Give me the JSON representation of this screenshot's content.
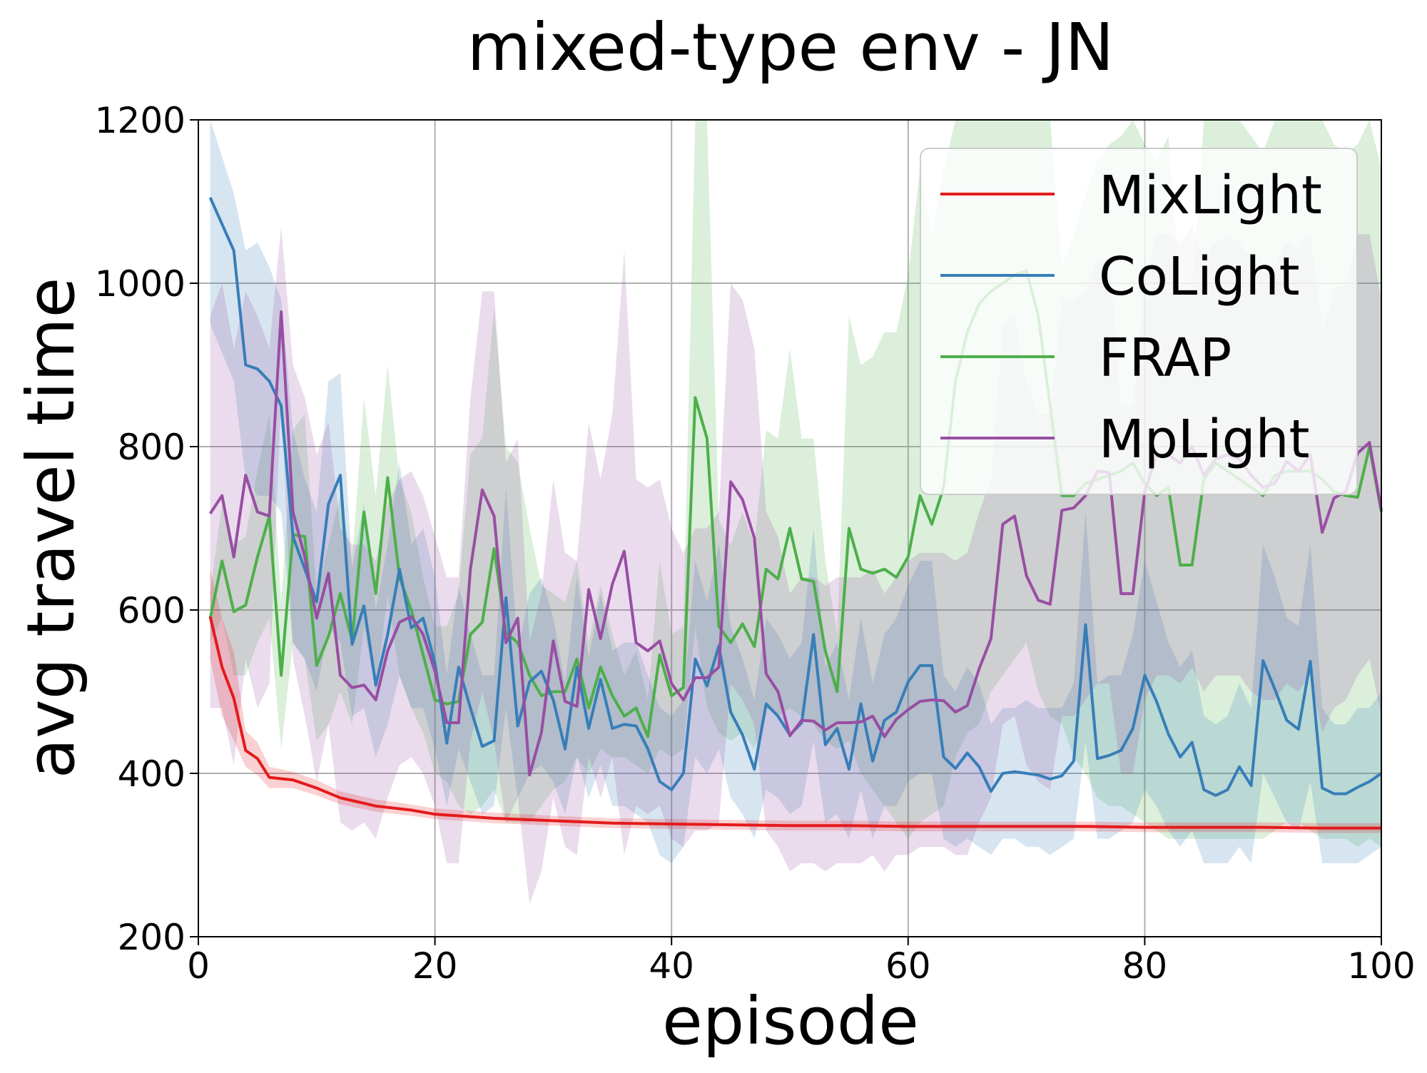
{
  "chart_data": {
    "type": "line",
    "title": "mixed-type env - JN",
    "xlabel": "episode",
    "ylabel": "avg travel time",
    "xlim": [
      0,
      100
    ],
    "ylim": [
      200,
      1200
    ],
    "xticks": [
      0,
      20,
      40,
      60,
      80,
      100
    ],
    "yticks": [
      200,
      400,
      600,
      800,
      1000,
      1200
    ],
    "grid": true,
    "legend_position": "top-right",
    "series": [
      {
        "name": "MixLight",
        "color": "#e41a1c",
        "x": [
          1,
          2,
          3,
          4,
          5,
          6,
          8,
          10,
          12,
          15,
          18,
          20,
          25,
          30,
          35,
          40,
          45,
          50,
          55,
          60,
          65,
          70,
          75,
          80,
          85,
          90,
          95,
          100
        ],
        "mean": [
          592,
          530,
          492,
          428,
          418,
          395,
          392,
          382,
          370,
          360,
          355,
          350,
          345,
          342,
          339,
          338,
          337,
          336,
          336,
          335,
          335,
          335,
          335,
          334,
          334,
          334,
          333,
          333
        ],
        "lower": [
          540,
          470,
          440,
          408,
          398,
          382,
          382,
          373,
          362,
          353,
          348,
          344,
          339,
          336,
          333,
          332,
          331,
          330,
          330,
          329,
          329,
          329,
          329,
          328,
          328,
          328,
          327,
          327
        ],
        "upper": [
          650,
          590,
          548,
          452,
          438,
          408,
          402,
          392,
          378,
          368,
          362,
          357,
          352,
          348,
          345,
          344,
          343,
          342,
          342,
          341,
          341,
          341,
          341,
          340,
          340,
          340,
          339,
          339
        ]
      },
      {
        "name": "CoLight",
        "color": "#377eb8",
        "x": [
          1,
          3,
          4,
          5,
          6,
          7,
          8,
          9,
          10,
          11,
          12,
          13,
          14,
          15,
          16,
          17,
          18,
          19,
          20,
          21,
          22,
          23,
          24,
          25,
          26,
          27,
          28,
          29,
          30,
          31,
          32,
          33,
          34,
          35,
          36,
          37,
          38,
          39,
          40,
          41,
          42,
          43,
          44,
          45,
          46,
          47,
          48,
          49,
          50,
          51,
          52,
          53,
          54,
          55,
          56,
          57,
          58,
          59,
          60,
          61,
          62,
          63,
          64,
          65,
          66,
          67,
          68,
          69,
          70,
          71,
          72,
          73,
          74,
          75,
          76,
          77,
          78,
          79,
          80,
          81,
          82,
          83,
          84,
          85,
          86,
          87,
          88,
          89,
          90,
          91,
          92,
          93,
          94,
          95,
          96,
          97,
          98,
          99,
          100
        ],
        "mean": [
          1105,
          1040,
          900,
          895,
          880,
          850,
          690,
          650,
          610,
          730,
          765,
          558,
          605,
          508,
          570,
          650,
          578,
          590,
          535,
          437,
          530,
          480,
          433,
          440,
          615,
          458,
          512,
          525,
          490,
          430,
          530,
          455,
          515,
          455,
          460,
          458,
          430,
          390,
          380,
          400,
          540,
          507,
          556,
          475,
          447,
          405,
          485,
          470,
          447,
          462,
          570,
          435,
          455,
          405,
          485,
          415,
          465,
          475,
          512,
          532,
          532,
          420,
          406,
          425,
          408,
          378,
          400,
          402,
          400,
          398,
          393,
          397,
          415,
          582,
          418,
          422,
          428,
          455,
          520,
          488,
          448,
          420,
          438,
          380,
          373,
          380,
          408,
          385,
          538,
          503,
          465,
          454,
          537,
          382,
          375,
          375,
          383,
          390,
          400
        ],
        "lower": [
          950,
          880,
          760,
          740,
          740,
          720,
          560,
          540,
          500,
          580,
          560,
          470,
          480,
          420,
          460,
          520,
          480,
          480,
          430,
          360,
          430,
          390,
          350,
          360,
          480,
          370,
          400,
          410,
          390,
          350,
          420,
          370,
          410,
          360,
          360,
          350,
          340,
          300,
          290,
          310,
          420,
          400,
          430,
          370,
          350,
          320,
          380,
          370,
          350,
          360,
          440,
          340,
          350,
          320,
          380,
          320,
          360,
          360,
          390,
          400,
          400,
          320,
          310,
          320,
          310,
          300,
          320,
          320,
          310,
          310,
          300,
          310,
          320,
          440,
          320,
          320,
          330,
          340,
          380,
          360,
          330,
          310,
          330,
          290,
          290,
          290,
          310,
          290,
          400,
          370,
          340,
          330,
          390,
          290,
          290,
          290,
          290,
          300,
          310
        ],
        "upper": [
          1260,
          1110,
          1040,
          1050,
          1020,
          980,
          820,
          760,
          720,
          880,
          890,
          650,
          730,
          600,
          680,
          780,
          680,
          700,
          640,
          520,
          630,
          570,
          520,
          520,
          750,
          550,
          620,
          640,
          590,
          510,
          640,
          540,
          620,
          550,
          560,
          560,
          520,
          480,
          470,
          490,
          660,
          610,
          680,
          580,
          540,
          490,
          590,
          570,
          540,
          560,
          700,
          530,
          560,
          490,
          590,
          510,
          570,
          590,
          630,
          660,
          660,
          520,
          500,
          530,
          510,
          460,
          480,
          480,
          490,
          480,
          480,
          480,
          510,
          720,
          510,
          520,
          520,
          570,
          660,
          610,
          560,
          530,
          550,
          470,
          460,
          470,
          510,
          480,
          680,
          640,
          590,
          580,
          680,
          480,
          460,
          460,
          480,
          480,
          500
        ]
      },
      {
        "name": "FRAP",
        "color": "#4daf4a",
        "x": [
          1,
          2,
          3,
          4,
          5,
          6,
          7,
          8,
          9,
          10,
          11,
          12,
          13,
          14,
          15,
          16,
          17,
          18,
          19,
          20,
          21,
          22,
          23,
          24,
          25,
          26,
          27,
          28,
          29,
          30,
          31,
          32,
          33,
          34,
          35,
          36,
          37,
          38,
          39,
          40,
          41,
          42,
          43,
          44,
          45,
          46,
          47,
          48,
          49,
          50,
          51,
          52,
          53,
          54,
          55,
          56,
          57,
          58,
          59,
          60,
          61,
          62,
          63,
          64,
          65,
          66,
          67,
          68,
          69,
          70,
          71,
          72,
          73,
          74,
          75,
          76,
          77,
          78,
          79,
          80,
          81,
          82,
          83,
          84,
          85,
          86,
          87,
          88,
          89,
          90,
          91,
          92,
          93,
          94,
          95,
          96,
          97,
          98,
          99,
          100
        ],
        "mean": [
          590,
          660,
          598,
          606,
          665,
          715,
          520,
          692,
          690,
          532,
          568,
          620,
          562,
          720,
          620,
          762,
          640,
          600,
          545,
          490,
          485,
          488,
          570,
          585,
          675,
          572,
          560,
          520,
          495,
          500,
          500,
          540,
          480,
          530,
          495,
          470,
          480,
          445,
          545,
          495,
          505,
          860,
          810,
          580,
          560,
          583,
          555,
          650,
          638,
          700,
          638,
          635,
          550,
          500,
          700,
          650,
          645,
          650,
          640,
          665,
          740,
          705,
          750,
          880,
          940,
          975,
          990,
          1000,
          1010,
          1015,
          960,
          850,
          740,
          740,
          755,
          760,
          765,
          770,
          780,
          755,
          740,
          750,
          655,
          655,
          760,
          780,
          770,
          760,
          750,
          740,
          765,
          770,
          770,
          770,
          760,
          745,
          740,
          738,
          800,
          720
        ],
        "lower": [
          560,
          590,
          520,
          520,
          560,
          590,
          430,
          560,
          540,
          440,
          460,
          500,
          460,
          580,
          500,
          620,
          520,
          480,
          450,
          400,
          390,
          360,
          350,
          360,
          380,
          340,
          340,
          340,
          360,
          380,
          390,
          420,
          400,
          430,
          420,
          420,
          410,
          400,
          430,
          420,
          430,
          580,
          480,
          450,
          440,
          450,
          430,
          480,
          470,
          480,
          470,
          460,
          440,
          430,
          440,
          400,
          380,
          360,
          340,
          320,
          340,
          350,
          360,
          420,
          450,
          460,
          500,
          520,
          540,
          560,
          500,
          470,
          460,
          420,
          400,
          370,
          360,
          360,
          350,
          340,
          330,
          320,
          320,
          320,
          320,
          320,
          320,
          320,
          320,
          320,
          330,
          340,
          340,
          330,
          320,
          320,
          320,
          310,
          320,
          310
        ],
        "upper": [
          620,
          730,
          680,
          690,
          770,
          840,
          610,
          820,
          840,
          620,
          680,
          740,
          660,
          860,
          740,
          900,
          760,
          720,
          640,
          580,
          580,
          620,
          790,
          810,
          970,
          800,
          780,
          700,
          630,
          620,
          610,
          660,
          560,
          630,
          570,
          520,
          550,
          490,
          660,
          570,
          580,
          1200,
          1200,
          710,
          680,
          720,
          680,
          820,
          810,
          920,
          810,
          810,
          660,
          570,
          960,
          900,
          910,
          940,
          940,
          1010,
          1140,
          1060,
          1140,
          1200,
          1200,
          1200,
          1200,
          1200,
          1200,
          1200,
          1200,
          1200,
          1020,
          1060,
          1110,
          1150,
          1170,
          1180,
          1200,
          1170,
          1150,
          1180,
          990,
          990,
          1200,
          1200,
          1200,
          1200,
          1180,
          1160,
          1200,
          1200,
          1200,
          1200,
          1200,
          1170,
          1160,
          1170,
          1200,
          1140
        ]
      },
      {
        "name": "MpLight",
        "color": "#984ea3",
        "x": [
          1,
          2,
          3,
          4,
          5,
          6,
          7,
          8,
          9,
          10,
          11,
          12,
          13,
          14,
          15,
          16,
          17,
          18,
          19,
          20,
          21,
          22,
          23,
          24,
          25,
          26,
          27,
          28,
          29,
          30,
          31,
          32,
          33,
          34,
          35,
          36,
          37,
          38,
          39,
          40,
          41,
          42,
          43,
          44,
          45,
          46,
          47,
          48,
          49,
          50,
          51,
          52,
          53,
          54,
          55,
          56,
          57,
          58,
          59,
          60,
          61,
          62,
          63,
          64,
          65,
          66,
          67,
          68,
          69,
          70,
          71,
          72,
          73,
          74,
          75,
          76,
          77,
          78,
          79,
          80,
          81,
          82,
          83,
          84,
          85,
          86,
          87,
          88,
          89,
          90,
          91,
          92,
          93,
          94,
          95,
          96,
          97,
          98,
          99,
          100
        ],
        "mean": [
          718,
          740,
          665,
          765,
          720,
          715,
          965,
          720,
          665,
          590,
          645,
          520,
          505,
          508,
          490,
          550,
          585,
          592,
          570,
          525,
          462,
          462,
          650,
          747,
          715,
          560,
          590,
          398,
          450,
          562,
          488,
          482,
          625,
          565,
          632,
          672,
          560,
          550,
          562,
          510,
          490,
          517,
          517,
          530,
          757,
          735,
          688,
          522,
          500,
          446,
          465,
          464,
          453,
          462,
          462,
          463,
          470,
          445,
          466,
          478,
          488,
          490,
          489,
          475,
          483,
          528,
          565,
          705,
          715,
          642,
          612,
          607,
          722,
          725,
          740,
          770,
          768,
          620,
          620,
          745,
          790,
          790,
          780,
          800,
          765,
          785,
          790,
          785,
          765,
          750,
          755,
          782,
          770,
          790,
          695,
          737,
          745,
          792,
          805,
          722
        ]
      }
    ]
  },
  "mplight_band": {
    "upper": [
      960,
      1000,
      920,
      990,
      960,
      920,
      1070,
      900,
      860,
      790,
      830,
      700,
      680,
      680,
      660,
      730,
      760,
      770,
      740,
      690,
      640,
      640,
      860,
      990,
      990,
      780,
      810,
      560,
      620,
      760,
      670,
      660,
      830,
      760,
      840,
      1040,
      760,
      750,
      760,
      700,
      670,
      700,
      700,
      720,
      1000,
      980,
      920,
      720,
      690,
      620,
      640,
      640,
      630,
      640,
      640,
      640,
      650,
      620,
      640,
      660,
      670,
      670,
      670,
      660,
      670,
      720,
      760,
      950,
      960,
      880,
      840,
      840,
      980,
      980,
      990,
      1030,
      1030,
      850,
      850,
      1000,
      1060,
      1060,
      1050,
      1070,
      1030,
      1050,
      1060,
      1050,
      1030,
      1010,
      1020,
      1050,
      1040,
      1060,
      940,
      990,
      1000,
      1060,
      1060,
      980
    ],
    "lower": [
      480,
      480,
      410,
      540,
      480,
      510,
      860,
      540,
      470,
      390,
      460,
      340,
      330,
      340,
      320,
      370,
      410,
      420,
      400,
      360,
      290,
      290,
      440,
      500,
      440,
      340,
      370,
      240,
      280,
      370,
      310,
      300,
      420,
      370,
      420,
      300,
      360,
      350,
      360,
      320,
      310,
      330,
      330,
      340,
      510,
      490,
      460,
      330,
      310,
      280,
      290,
      290,
      280,
      290,
      290,
      290,
      300,
      280,
      300,
      300,
      310,
      310,
      310,
      300,
      300,
      340,
      370,
      460,
      470,
      410,
      390,
      380,
      470,
      470,
      490,
      510,
      510,
      400,
      400,
      490,
      520,
      520,
      510,
      530,
      500,
      520,
      520,
      520,
      500,
      490,
      490,
      510,
      500,
      520,
      450,
      480,
      490,
      520,
      540,
      470
    ]
  }
}
